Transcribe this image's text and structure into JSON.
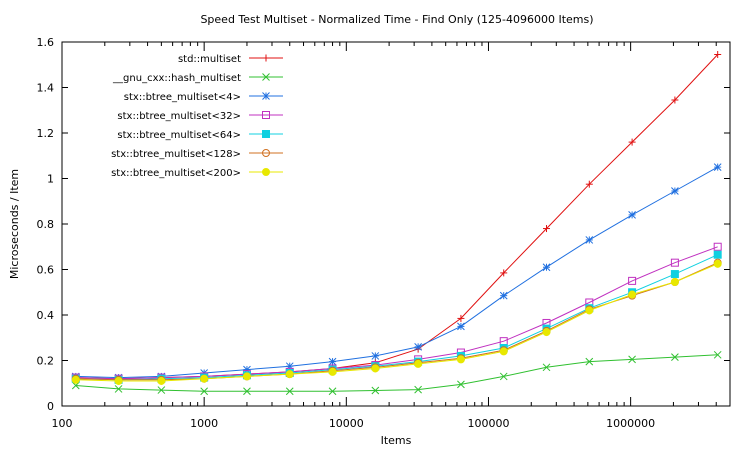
{
  "chart_data": {
    "type": "line",
    "title": "Speed Test Multiset - Normalized Time - Find Only (125-4096000 Items)",
    "xlabel": "Items",
    "ylabel": "Microseconds / Item",
    "xscale": "log",
    "xlim": [
      100,
      5000000
    ],
    "ylim": [
      0,
      1.6
    ],
    "xticks": [
      100,
      1000,
      10000,
      100000,
      1000000
    ],
    "xtick_labels": [
      "100",
      "1000",
      "10000",
      "100000",
      "1000000"
    ],
    "yticks": [
      0,
      0.2,
      0.4,
      0.6,
      0.8,
      1,
      1.2,
      1.4,
      1.6
    ],
    "ytick_labels": [
      "0",
      "0.2",
      "0.4",
      "0.6",
      "0.8",
      "1",
      "1.2",
      "1.4",
      "1.6"
    ],
    "grid": false,
    "legend_position": "top-left",
    "x": [
      125,
      250,
      500,
      1000,
      2000,
      4000,
      8000,
      16000,
      32000,
      64000,
      128000,
      256000,
      512000,
      1024000,
      2048000,
      4096000
    ],
    "series": [
      {
        "name": "std::multiset",
        "color": "#e01010",
        "marker": "plus",
        "values": [
          0.125,
          0.12,
          0.125,
          0.13,
          0.14,
          0.15,
          0.165,
          0.19,
          0.25,
          0.385,
          0.585,
          0.78,
          0.975,
          1.16,
          1.345,
          1.545
        ]
      },
      {
        "name": "__gnu_cxx::hash_multiset",
        "color": "#30c030",
        "marker": "cross",
        "values": [
          0.09,
          0.075,
          0.07,
          0.065,
          0.065,
          0.065,
          0.065,
          0.068,
          0.072,
          0.095,
          0.13,
          0.17,
          0.195,
          0.205,
          0.215,
          0.225
        ]
      },
      {
        "name": "stx::btree_multiset<4>",
        "color": "#2070e0",
        "marker": "star",
        "values": [
          0.13,
          0.125,
          0.13,
          0.145,
          0.16,
          0.175,
          0.195,
          0.22,
          0.26,
          0.35,
          0.485,
          0.61,
          0.73,
          0.84,
          0.945,
          1.05
        ]
      },
      {
        "name": "stx::btree_multiset<32>",
        "color": "#c030c0",
        "marker": "square-open",
        "values": [
          0.125,
          0.12,
          0.125,
          0.13,
          0.14,
          0.15,
          0.165,
          0.18,
          0.205,
          0.235,
          0.285,
          0.365,
          0.455,
          0.55,
          0.63,
          0.7
        ]
      },
      {
        "name": "stx::btree_multiset<64>",
        "color": "#10d0e0",
        "marker": "square-filled",
        "values": [
          0.12,
          0.115,
          0.12,
          0.125,
          0.135,
          0.145,
          0.16,
          0.175,
          0.195,
          0.22,
          0.255,
          0.34,
          0.43,
          0.5,
          0.58,
          0.665
        ]
      },
      {
        "name": "stx::btree_multiset<128>",
        "color": "#d07020",
        "marker": "circle-open",
        "values": [
          0.12,
          0.115,
          0.115,
          0.12,
          0.13,
          0.14,
          0.155,
          0.17,
          0.19,
          0.21,
          0.245,
          0.33,
          0.425,
          0.485,
          0.545,
          0.63
        ]
      },
      {
        "name": "stx::btree_multiset<200>",
        "color": "#e8e800",
        "marker": "circle-filled",
        "values": [
          0.115,
          0.11,
          0.11,
          0.12,
          0.13,
          0.14,
          0.15,
          0.165,
          0.185,
          0.205,
          0.24,
          0.325,
          0.42,
          0.49,
          0.545,
          0.625
        ]
      }
    ]
  }
}
